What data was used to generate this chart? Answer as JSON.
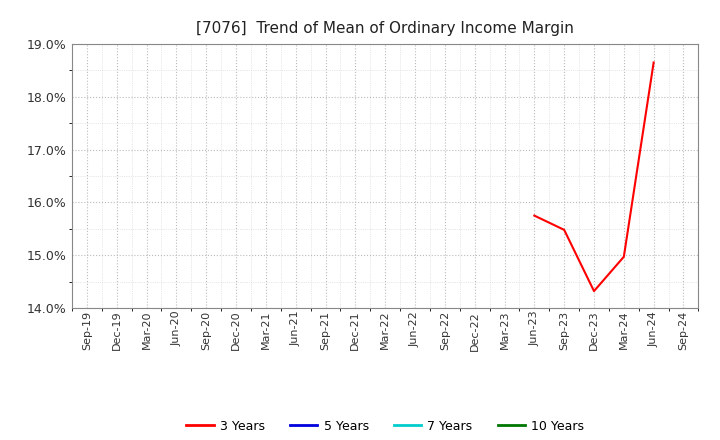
{
  "title": "[7076]  Trend of Mean of Ordinary Income Margin",
  "ylim": [
    0.14,
    0.19
  ],
  "yticks": [
    0.14,
    0.15,
    0.16,
    0.17,
    0.18,
    0.19
  ],
  "background_color": "#ffffff",
  "grid_major_color": "#bbbbbb",
  "grid_minor_color": "#cccccc",
  "series": {
    "3 Years": {
      "color": "#ff0000",
      "data_x": [
        15,
        16,
        17,
        18,
        19
      ],
      "data_y": [
        0.1575,
        0.1548,
        0.1432,
        0.1497,
        0.1865
      ]
    },
    "5 Years": {
      "color": "#0000dd",
      "data_x": [],
      "data_y": []
    },
    "7 Years": {
      "color": "#00cccc",
      "data_x": [],
      "data_y": []
    },
    "10 Years": {
      "color": "#007700",
      "data_x": [],
      "data_y": []
    }
  },
  "x_tick_labels": [
    "Sep-19",
    "Dec-19",
    "Mar-20",
    "Jun-20",
    "Sep-20",
    "Dec-20",
    "Mar-21",
    "Jun-21",
    "Sep-21",
    "Dec-21",
    "Mar-22",
    "Jun-22",
    "Sep-22",
    "Dec-22",
    "Mar-23",
    "Jun-23",
    "Sep-23",
    "Dec-23",
    "Mar-24",
    "Jun-24",
    "Sep-24"
  ],
  "legend_entries": [
    "3 Years",
    "5 Years",
    "7 Years",
    "10 Years"
  ],
  "legend_colors": [
    "#ff0000",
    "#0000dd",
    "#00cccc",
    "#007700"
  ],
  "title_fontsize": 11,
  "tick_fontsize": 8,
  "ytick_fontsize": 9
}
